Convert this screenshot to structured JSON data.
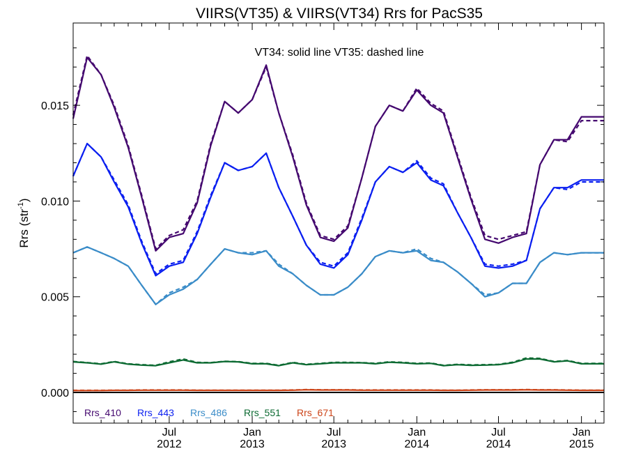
{
  "chart_data": {
    "type": "line",
    "title": "VIIRS(VT35) & VIIRS(VT34)  Rrs for PacS35",
    "annotation": "VT34: solid line   VT35: dashed line",
    "ylabel": "Rrs (str",
    "ylabel_sup": "-1",
    "ylabel_close": ")",
    "xlabel": "",
    "ylim": [
      -0.0016,
      0.0193
    ],
    "xlim": [
      "2011-12-01",
      "2015-02-20"
    ],
    "yticks": [
      {
        "value": 0.0,
        "label": "0.000"
      },
      {
        "value": 0.005,
        "label": "0.005"
      },
      {
        "value": 0.01,
        "label": "0.010"
      },
      {
        "value": 0.015,
        "label": "0.015"
      }
    ],
    "xticks": [
      {
        "date": "2012-07-01",
        "month": "Jul",
        "year": "2012"
      },
      {
        "date": "2013-01-01",
        "month": "Jan",
        "year": "2013"
      },
      {
        "date": "2013-07-01",
        "month": "Jul",
        "year": "2013"
      },
      {
        "date": "2014-01-01",
        "month": "Jan",
        "year": "2014"
      },
      {
        "date": "2014-07-01",
        "month": "Jul",
        "year": "2014"
      },
      {
        "date": "2015-01-01",
        "month": "Jan",
        "year": "2015"
      }
    ],
    "zero_line": true,
    "grid": false,
    "legend_position": "bottom-left",
    "dates": [
      "2011-12-01",
      "2012-01-01",
      "2012-02-01",
      "2012-03-01",
      "2012-04-01",
      "2012-05-01",
      "2012-06-01",
      "2012-07-01",
      "2012-08-01",
      "2012-09-01",
      "2012-10-01",
      "2012-11-01",
      "2012-12-01",
      "2013-01-01",
      "2013-02-01",
      "2013-03-01",
      "2013-04-01",
      "2013-05-01",
      "2013-06-01",
      "2013-07-01",
      "2013-08-01",
      "2013-09-01",
      "2013-10-01",
      "2013-11-01",
      "2013-12-01",
      "2014-01-01",
      "2014-02-01",
      "2014-03-01",
      "2014-04-01",
      "2014-05-01",
      "2014-06-01",
      "2014-07-01",
      "2014-08-01",
      "2014-09-01",
      "2014-10-01",
      "2014-11-01",
      "2014-12-01",
      "2015-01-01",
      "2015-02-01",
      "2015-02-20"
    ],
    "series": [
      {
        "name": "Rrs_410",
        "color": "#44086f",
        "vt34": [
          0.0143,
          0.0175,
          0.0166,
          0.0149,
          0.0128,
          0.0102,
          0.0074,
          0.0081,
          0.0083,
          0.0099,
          0.0129,
          0.0152,
          0.0146,
          0.0153,
          0.0171,
          0.0146,
          0.0123,
          0.0098,
          0.0081,
          0.0079,
          0.0086,
          0.0112,
          0.0139,
          0.015,
          0.0147,
          0.0158,
          0.015,
          0.0146,
          0.0123,
          0.0101,
          0.008,
          0.0078,
          0.0081,
          0.0083,
          0.0119,
          0.0132,
          0.0132,
          0.0144,
          0.0144,
          0.0144
        ],
        "vt35": [
          0.0145,
          0.0176,
          0.0166,
          0.015,
          0.0129,
          0.0103,
          0.0075,
          0.0082,
          0.0085,
          0.01,
          0.013,
          0.0152,
          0.0146,
          0.0153,
          0.017,
          0.0146,
          0.0124,
          0.0099,
          0.0082,
          0.008,
          0.0087,
          0.0112,
          0.0139,
          0.015,
          0.0147,
          0.0159,
          0.0151,
          0.0147,
          0.0124,
          0.0102,
          0.0082,
          0.008,
          0.0082,
          0.0084,
          0.0119,
          0.0132,
          0.0131,
          0.0142,
          0.0142,
          0.0142
        ]
      },
      {
        "name": "Rrs_443",
        "color": "#0a1ff0",
        "vt34": [
          0.0113,
          0.013,
          0.0123,
          0.011,
          0.0097,
          0.0078,
          0.0061,
          0.0066,
          0.0068,
          0.0083,
          0.0102,
          0.012,
          0.0116,
          0.0118,
          0.0125,
          0.0107,
          0.0092,
          0.0077,
          0.0067,
          0.0065,
          0.0072,
          0.009,
          0.011,
          0.0118,
          0.0115,
          0.012,
          0.0111,
          0.0108,
          0.0094,
          0.0081,
          0.0066,
          0.0065,
          0.0066,
          0.0069,
          0.0096,
          0.0107,
          0.0107,
          0.0111,
          0.0111,
          0.0111
        ],
        "vt35": [
          0.0113,
          0.013,
          0.0123,
          0.0111,
          0.0098,
          0.0079,
          0.0062,
          0.0067,
          0.0069,
          0.0084,
          0.0103,
          0.012,
          0.0116,
          0.0118,
          0.0125,
          0.0107,
          0.0092,
          0.0077,
          0.0068,
          0.0066,
          0.0073,
          0.0091,
          0.011,
          0.0118,
          0.0115,
          0.0121,
          0.0112,
          0.0109,
          0.0094,
          0.0081,
          0.0067,
          0.0066,
          0.0067,
          0.0069,
          0.0096,
          0.0107,
          0.0106,
          0.011,
          0.011,
          0.011
        ]
      },
      {
        "name": "Rrs_486",
        "color": "#3a8cc8",
        "vt34": [
          0.0073,
          0.0076,
          0.0073,
          0.007,
          0.0066,
          0.0056,
          0.0046,
          0.0051,
          0.0054,
          0.0059,
          0.0067,
          0.0075,
          0.0073,
          0.0072,
          0.0074,
          0.0066,
          0.0062,
          0.0056,
          0.0051,
          0.0051,
          0.0055,
          0.0062,
          0.0071,
          0.0074,
          0.0073,
          0.0074,
          0.0069,
          0.0068,
          0.0063,
          0.0057,
          0.005,
          0.0052,
          0.0057,
          0.0057,
          0.0068,
          0.0073,
          0.0072,
          0.0073,
          0.0073,
          0.0073
        ],
        "vt35": [
          0.0073,
          0.0076,
          0.0073,
          0.007,
          0.0066,
          0.0056,
          0.0046,
          0.0052,
          0.0055,
          0.0059,
          0.0067,
          0.0075,
          0.0073,
          0.0073,
          0.0074,
          0.0067,
          0.0062,
          0.0056,
          0.0051,
          0.0051,
          0.0055,
          0.0062,
          0.0071,
          0.0074,
          0.0073,
          0.0075,
          0.007,
          0.0068,
          0.0063,
          0.0057,
          0.0051,
          0.0052,
          0.0057,
          0.0057,
          0.0068,
          0.0073,
          0.0072,
          0.0073,
          0.0073,
          0.0073
        ]
      },
      {
        "name": "Rrs_551",
        "color": "#0c6a32",
        "vt34": [
          0.0016,
          0.00155,
          0.00148,
          0.0016,
          0.00148,
          0.00143,
          0.0014,
          0.00155,
          0.0017,
          0.00155,
          0.00155,
          0.00162,
          0.0016,
          0.0015,
          0.0015,
          0.0014,
          0.00155,
          0.00145,
          0.0015,
          0.00155,
          0.00155,
          0.00155,
          0.0015,
          0.00158,
          0.00155,
          0.0015,
          0.00152,
          0.0014,
          0.00145,
          0.00142,
          0.00143,
          0.00145,
          0.00155,
          0.00175,
          0.00175,
          0.0016,
          0.00165,
          0.0015,
          0.0015,
          0.0015
        ],
        "vt35": [
          0.00162,
          0.00156,
          0.0015,
          0.00162,
          0.0015,
          0.00145,
          0.00142,
          0.0016,
          0.00175,
          0.00157,
          0.00156,
          0.00163,
          0.00161,
          0.00152,
          0.00152,
          0.00142,
          0.00157,
          0.00147,
          0.00152,
          0.00157,
          0.00157,
          0.00156,
          0.00152,
          0.0016,
          0.00157,
          0.00152,
          0.00154,
          0.00142,
          0.00147,
          0.00144,
          0.00145,
          0.00147,
          0.00158,
          0.0018,
          0.00178,
          0.00162,
          0.00167,
          0.00152,
          0.00152,
          0.00152
        ]
      },
      {
        "name": "Rrs_671",
        "color": "#cc4418",
        "vt34": [
          0.0001,
          0.0001,
          0.0001,
          0.00011,
          0.00011,
          0.00012,
          0.00012,
          0.00012,
          0.00012,
          0.00011,
          0.00011,
          0.00011,
          0.00011,
          0.00011,
          0.00011,
          0.00011,
          0.00012,
          0.00014,
          0.00013,
          0.00013,
          0.00013,
          0.00012,
          0.00012,
          0.00012,
          0.00012,
          0.00012,
          0.00012,
          0.00011,
          0.00011,
          0.00012,
          0.00013,
          0.00013,
          0.00013,
          0.00014,
          0.00013,
          0.00013,
          0.00012,
          0.00011,
          0.00011,
          0.00011
        ],
        "vt35": [
          0.00011,
          0.00011,
          0.00011,
          0.00012,
          0.00012,
          0.00013,
          0.00013,
          0.00013,
          0.00013,
          0.00012,
          0.00012,
          0.00012,
          0.00012,
          0.00012,
          0.00012,
          0.00012,
          0.00013,
          0.00015,
          0.00014,
          0.00014,
          0.00014,
          0.00013,
          0.00013,
          0.00013,
          0.00013,
          0.00013,
          0.00013,
          0.00012,
          0.00012,
          0.00013,
          0.00014,
          0.00014,
          0.00014,
          0.00015,
          0.00014,
          0.00014,
          0.00013,
          0.00012,
          0.00012,
          0.00012
        ]
      }
    ]
  }
}
